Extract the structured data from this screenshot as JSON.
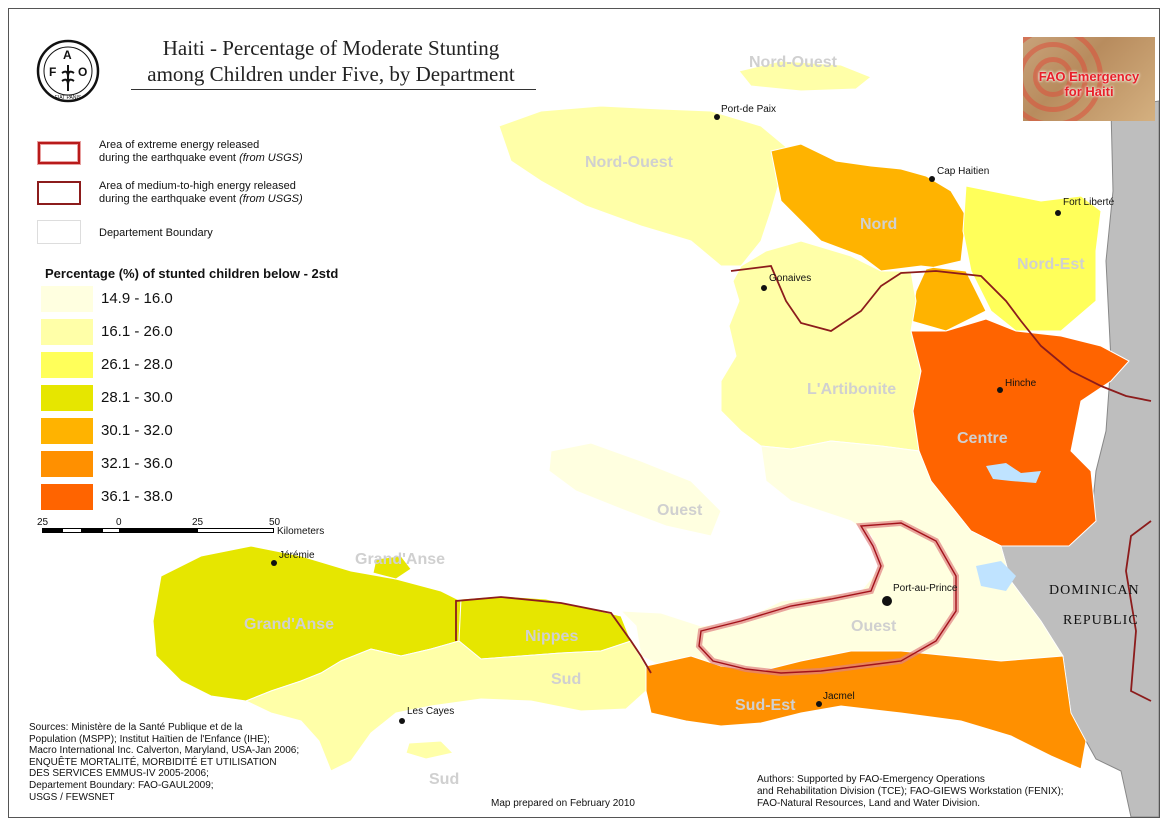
{
  "title": {
    "line1": "Haiti - Percentage of Moderate Stunting",
    "line2": "among Children under Five, by Department"
  },
  "logo": {
    "icon": "fao-logo-icon",
    "letters": [
      "F",
      "A",
      "O"
    ],
    "motto": "FIAT PANIS"
  },
  "badge": {
    "line1": "FAO Emergency",
    "line2": "for Haiti"
  },
  "legend": {
    "extreme_line1": "Area of extreme energy released",
    "extreme_line2": "during the earthquake event",
    "medium_line1": "Area of medium-to-high energy released",
    "medium_line2": "during the earthquake event",
    "source_note": "(from USGS)",
    "boundary": "Departement Boundary",
    "heading": "Percentage (%) of stunted children below - 2std",
    "classes": [
      {
        "label": "14.9 - 16.0",
        "color": "#ffffe0"
      },
      {
        "label": "16.1 - 26.0",
        "color": "#ffffa8"
      },
      {
        "label": "26.1 - 28.0",
        "color": "#ffff5a"
      },
      {
        "label": "28.1 - 30.0",
        "color": "#e6e600"
      },
      {
        "label": "30.1 - 32.0",
        "color": "#ffb300"
      },
      {
        "label": "32.1 - 36.0",
        "color": "#ff9000"
      },
      {
        "label": "36.1 - 38.0",
        "color": "#ff6400"
      }
    ],
    "extreme_color": "#d9342b",
    "medium_color": "#7a1a1a"
  },
  "scale": {
    "ticks": [
      "25",
      "0",
      "25",
      "50"
    ],
    "unit": "Kilometers"
  },
  "departments": [
    {
      "name": "Nord-Ouest",
      "class": 1
    },
    {
      "name": "Nord",
      "class": 4
    },
    {
      "name": "Nord-Est",
      "class": 2
    },
    {
      "name": "L'Artibonite",
      "class": 1
    },
    {
      "name": "Centre",
      "class": 6
    },
    {
      "name": "Ouest",
      "class": 0
    },
    {
      "name": "Grand'Anse",
      "class": 3
    },
    {
      "name": "Nippes",
      "class": 3
    },
    {
      "name": "Sud",
      "class": 1
    },
    {
      "name": "Sud-Est",
      "class": 5
    }
  ],
  "labels": {
    "nord_ouest_top": "Nord-Ouest",
    "nord_ouest": "Nord-Ouest",
    "nord": "Nord",
    "nord_est": "Nord-Est",
    "artibonite": "L'Artibonite",
    "centre": "Centre",
    "ouest_island": "Ouest",
    "ouest": "Ouest",
    "grandanse_top": "Grand'Anse",
    "grandanse": "Grand'Anse",
    "nippes": "Nippes",
    "sud": "Sud",
    "sud_bottom": "Sud",
    "sud_est": "Sud-Est"
  },
  "cities": {
    "port_de_paix": "Port-de Paix",
    "cap_haitien": "Cap Haitien",
    "fort_liberte": "Fort Liberté",
    "gonaives": "Gonaives",
    "hinche": "Hinche",
    "port_au_prince": "Port-au-Prince",
    "jeremie": "Jérémie",
    "jacmel": "Jacmel",
    "les_cayes": "Les Cayes"
  },
  "dominican": {
    "line1": "DOMINICAN",
    "line2": "REPUBLIC"
  },
  "sources": [
    "Sources: Ministère de la Santé Publique et de la",
    "Population (MSPP); Institut Haïtien de l'Enfance (IHE);",
    "Macro International Inc. Calverton, Maryland, USA-Jan 2006;",
    "ENQUÊTE MORTALITÉ, MORBIDITÉ ET UTILISATION",
    "DES SERVICES EMMUS-IV 2005-2006;",
    "Departement Boundary: FAO-GAUL2009;",
    "USGS / FEWSNET"
  ],
  "prepared": "Map prepared on February 2010",
  "authors": [
    "Authors: Supported by FAO-Emergency Operations",
    "and Rehabilitation Division (TCE); FAO-GIEWS Workstation (FENIX);",
    "FAO-Natural Resources, Land and Water Division."
  ]
}
